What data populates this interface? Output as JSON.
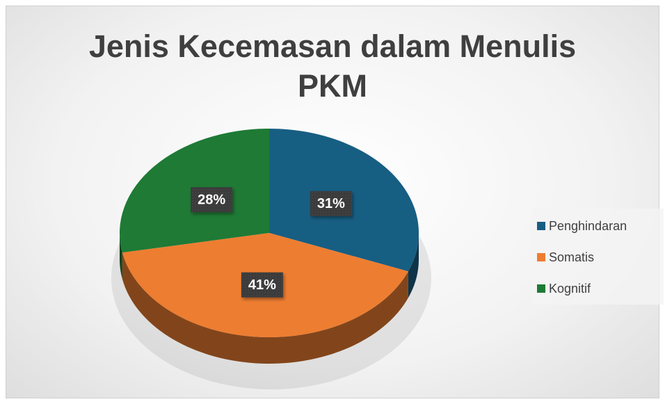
{
  "chart_data": {
    "type": "pie",
    "title": "Jenis Kecemasan dalam Menulis PKM",
    "categories": [
      "Penghindaran",
      "Somatis",
      "Kognitif"
    ],
    "values": [
      31,
      41,
      28
    ],
    "value_labels": [
      "31%",
      "41%",
      "28%"
    ],
    "colors": [
      "#175e83",
      "#ed7d31",
      "#1e7a35"
    ],
    "legend": "right"
  }
}
